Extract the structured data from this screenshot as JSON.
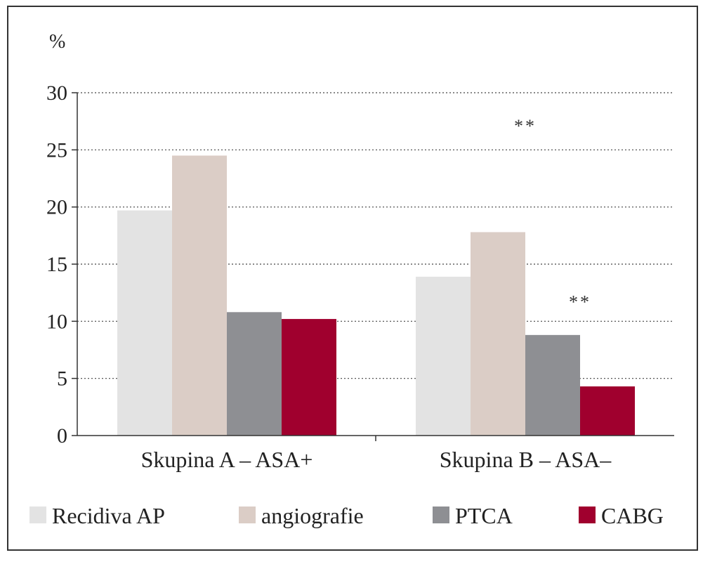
{
  "chart_data": {
    "type": "bar",
    "title": "",
    "xlabel": "",
    "ylabel": "%",
    "ylim": [
      0,
      30
    ],
    "yticks": [
      0,
      5,
      10,
      15,
      20,
      25,
      30
    ],
    "grid": true,
    "legend_position": "bottom",
    "categories": [
      "Skupina A – ASA+",
      "Skupina B – ASA–"
    ],
    "series": [
      {
        "name": "Recidiva AP",
        "color": "#e3e3e3",
        "values": [
          19.7,
          13.9
        ]
      },
      {
        "name": "angiografie",
        "color": "#dbcdc6",
        "values": [
          24.5,
          17.8
        ]
      },
      {
        "name": "PTCA",
        "color": "#8e8f93",
        "values": [
          10.8,
          8.8
        ]
      },
      {
        "name": "CABG",
        "color": "#a0002e",
        "values": [
          10.2,
          4.3
        ]
      }
    ],
    "annotations": [
      {
        "text": "**",
        "category_index": 1,
        "series_index": 1,
        "y": 27.3
      },
      {
        "text": "**",
        "category_index": 1,
        "series_index": 2,
        "y": 11.9
      }
    ]
  }
}
